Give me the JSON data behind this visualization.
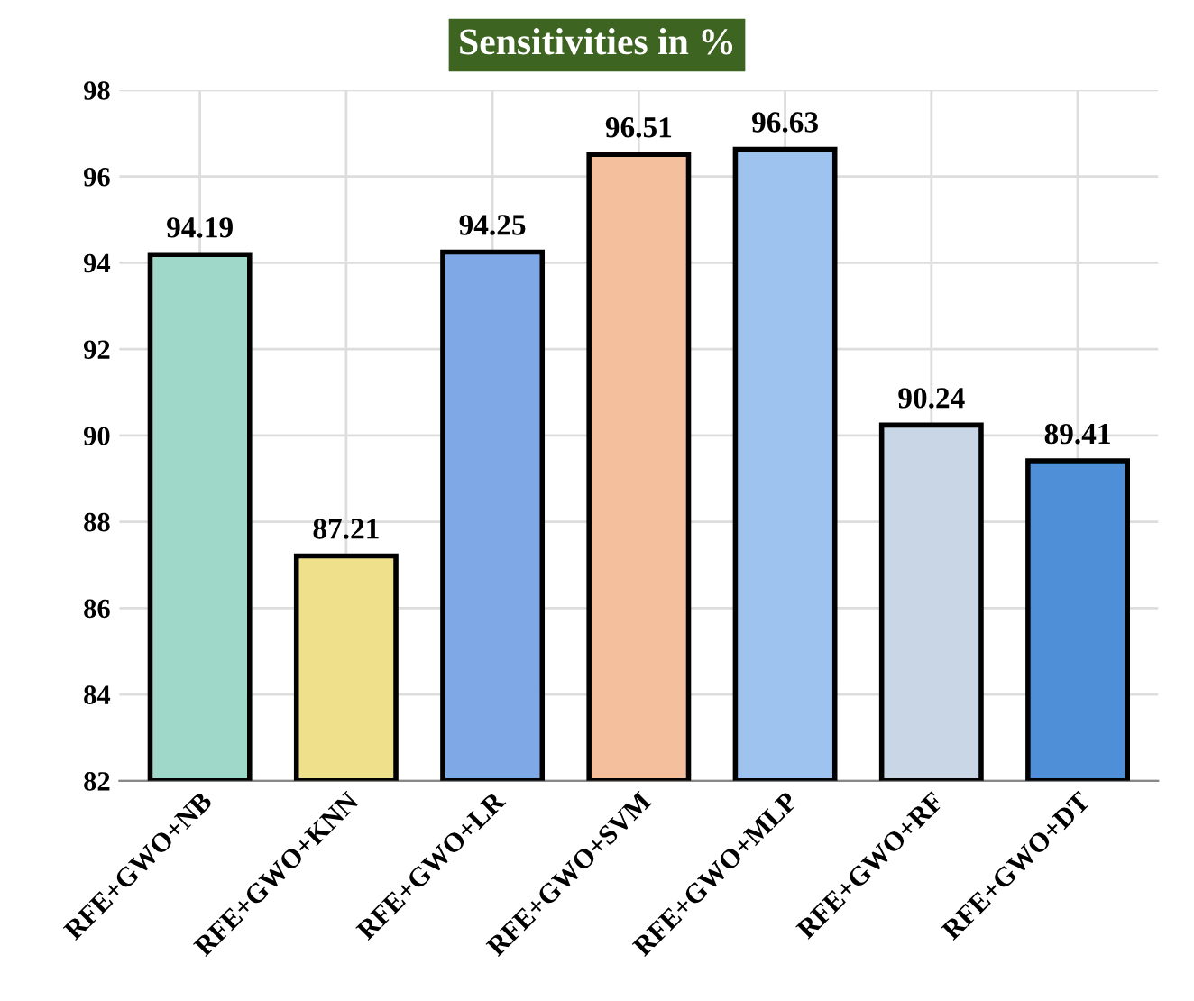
{
  "chart_data": {
    "type": "bar",
    "title": "Sensitivities in %",
    "categories": [
      "RFE+GWO+NB",
      "RFE+GWO+KNN",
      "RFE+GWO+LR",
      "RFE+GWO+SVM",
      "RFE+GWO+MLP",
      "RFE+GWO+RF",
      "RFE+GWO+DT"
    ],
    "values": [
      94.19,
      87.21,
      94.25,
      96.51,
      96.63,
      90.24,
      89.41
    ],
    "colors": [
      "#9fd8c8",
      "#efe08c",
      "#7fa9e6",
      "#f4bf9c",
      "#9ec3ee",
      "#c9d6e6",
      "#4f8fd8"
    ],
    "data_labels": true,
    "ylim": [
      82,
      98
    ],
    "yticks": [
      82,
      84,
      86,
      88,
      90,
      92,
      94,
      96,
      98
    ],
    "grid": true
  }
}
